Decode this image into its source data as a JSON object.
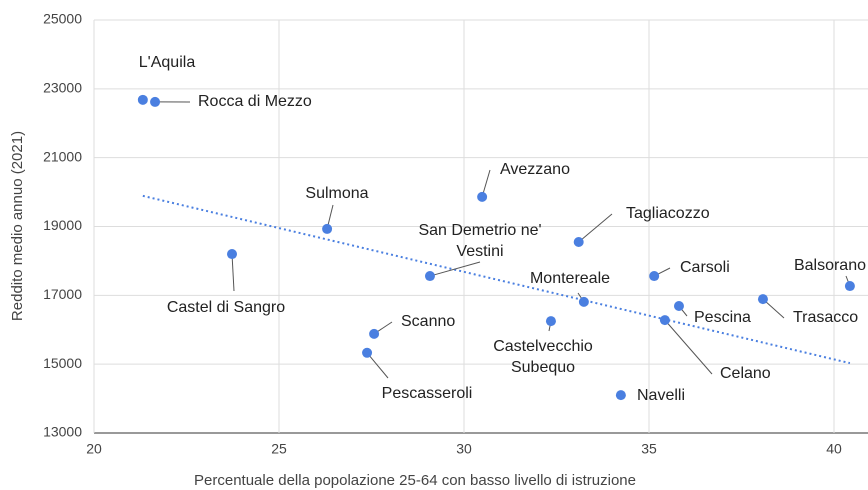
{
  "chart_data": {
    "type": "scatter",
    "x_label": "Percentuale della popolazione 25-64 con basso livello di istruzione",
    "y_label": "Reddito medio annuo (2021)",
    "xlim": [
      20,
      40.9
    ],
    "ylim": [
      13000,
      25000
    ],
    "xticks": [
      20,
      25,
      30,
      35,
      40
    ],
    "yticks": [
      13000,
      15000,
      17000,
      19000,
      21000,
      23000,
      25000
    ],
    "grid": true,
    "color": "#4a7fe0",
    "labels": [
      [
        "L'Aquila"
      ],
      [
        "Rocca di Mezzo"
      ],
      [
        "Sulmona"
      ],
      [
        "Castel di Sangro"
      ],
      [
        "Avezzano"
      ],
      [
        "San Demetrio ne'",
        "Vestini"
      ],
      [
        "Tagliacozzo"
      ],
      [
        "Montereale"
      ],
      [
        "Carsoli"
      ],
      [
        "Scanno"
      ],
      [
        "Pescasseroli"
      ],
      [
        "Castelvecchio",
        "Subequo"
      ],
      [
        "Navelli"
      ],
      [
        "Pescina"
      ],
      [
        "Celano"
      ],
      [
        "Trasacco"
      ],
      [
        "Balsorano"
      ]
    ],
    "x": [
      21.32,
      21.65,
      26.3,
      23.73,
      30.49,
      29.08,
      33.1,
      33.24,
      35.14,
      27.57,
      27.38,
      32.35,
      34.24,
      35.81,
      35.43,
      38.08,
      40.43
    ],
    "values": [
      22680,
      22620,
      18930,
      18200,
      19860,
      17560,
      18550,
      16810,
      17560,
      15880,
      15330,
      16250,
      14100,
      16690,
      16280,
      16890,
      17270
    ],
    "trendline": {
      "color": "#4a7fe0",
      "x": [
        21.32,
        40.43
      ],
      "values": [
        19890,
        15030
      ]
    }
  }
}
